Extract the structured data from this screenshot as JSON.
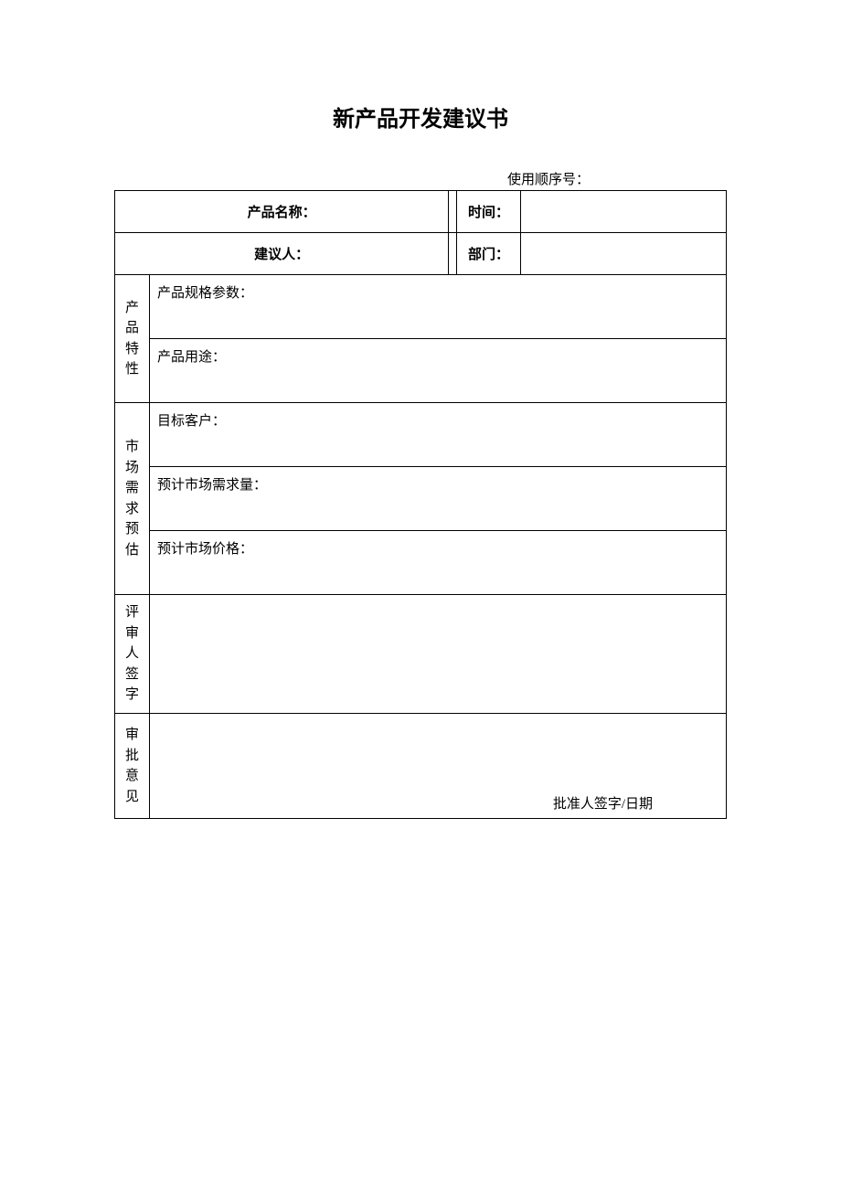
{
  "document": {
    "title": "新产品开发建议书",
    "sequence_label": "使用顺序号：",
    "header": {
      "product_name_label": "产品名称：",
      "product_name_value": "",
      "time_label": "时间：",
      "time_value": "",
      "proposer_label": "建议人：",
      "proposer_value": "",
      "department_label": "部门：",
      "department_value": ""
    },
    "sections": {
      "product_features": {
        "label_chars": [
          "产",
          "品",
          "特",
          "性"
        ],
        "spec_label": "产品规格参数：",
        "usage_label": "产品用途："
      },
      "market_forecast": {
        "label_chars": [
          "市",
          "场",
          "需",
          "求",
          "预",
          "估"
        ],
        "target_customer_label": "目标客户：",
        "demand_label": "预计市场需求量：",
        "price_label": "预计市场价格："
      },
      "reviewer": {
        "label_chars": [
          "评",
          "审",
          "人",
          "签",
          "字"
        ]
      },
      "approval": {
        "label_chars": [
          "审",
          "批",
          "意",
          "见"
        ],
        "signature_label": "批准人签字/日期"
      }
    }
  },
  "style": {
    "background_color": "#ffffff",
    "border_color": "#000000",
    "title_fontsize": 24,
    "body_fontsize": 15,
    "font_family": "SimSun"
  }
}
